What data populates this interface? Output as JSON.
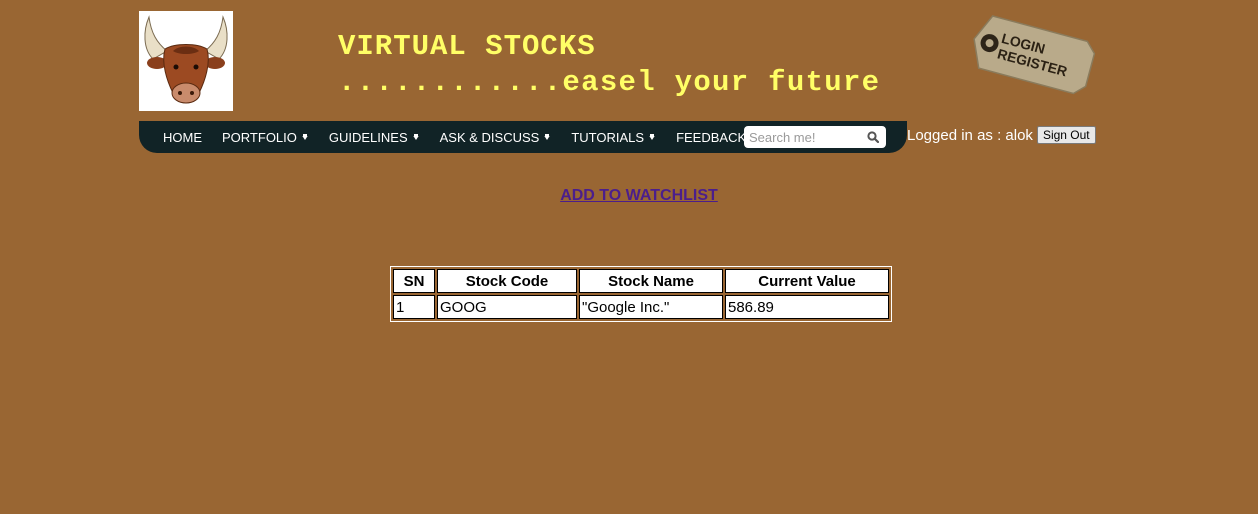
{
  "header": {
    "title": "VIRTUAL STOCKS",
    "tagline": "............easel your future",
    "tag_line1": "LOGIN",
    "tag_line2": "REGISTER"
  },
  "nav": {
    "items": [
      {
        "label": "HOME",
        "has_dropdown": false
      },
      {
        "label": "PORTFOLIO",
        "has_dropdown": true
      },
      {
        "label": "GUIDELINES",
        "has_dropdown": true
      },
      {
        "label": "ASK & DISCUSS",
        "has_dropdown": true
      },
      {
        "label": "TUTORIALS",
        "has_dropdown": true
      },
      {
        "label": "FEEDBACK",
        "has_dropdown": false
      }
    ],
    "search_placeholder": "Search me!"
  },
  "session": {
    "status_text": "Logged in as : alok",
    "signout_label": "Sign Out"
  },
  "main": {
    "watchlist_link": "ADD TO WATCHLIST",
    "table": {
      "headers": [
        "SN",
        "Stock Code",
        "Stock Name",
        "Current Value"
      ],
      "rows": [
        [
          "1",
          "GOOG",
          "\"Google Inc.\"",
          "586.89"
        ]
      ]
    }
  },
  "colors": {
    "background": "#996633",
    "title": "#ffff66",
    "navbar": "#112326",
    "link": "#4b1e8c"
  }
}
